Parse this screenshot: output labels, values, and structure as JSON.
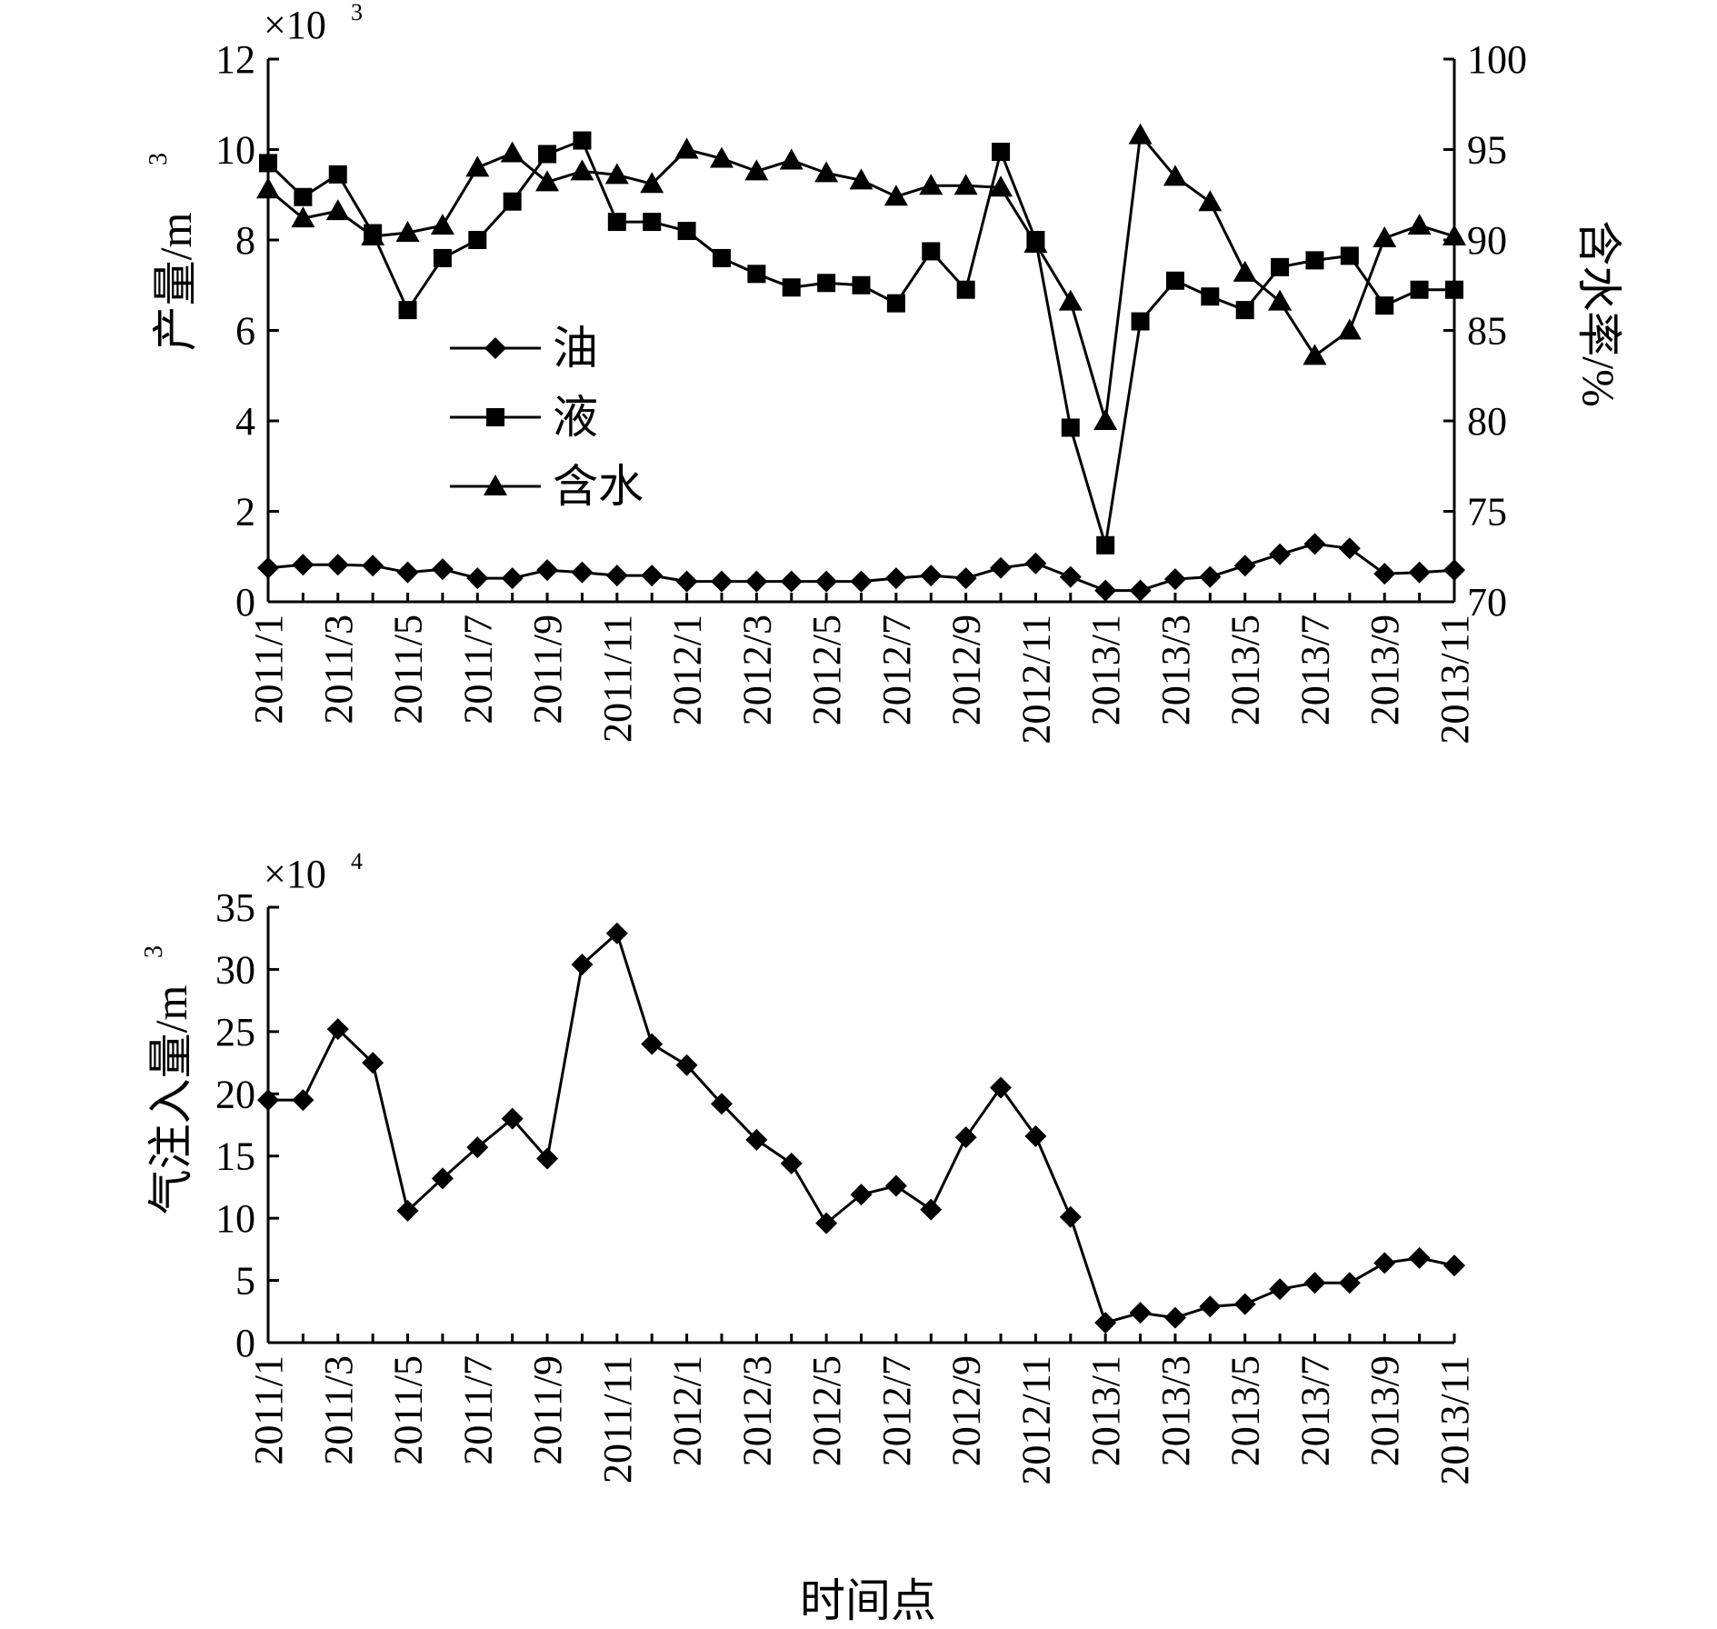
{
  "chart_data": [
    {
      "type": "line",
      "title": "",
      "multiplier": "×10",
      "multiplier_exp": "3",
      "ylabel": "产量/m",
      "ylabel_sup": "3",
      "y2label": "含水率/%",
      "ylim": [
        0,
        12
      ],
      "y2lim": [
        70,
        100
      ],
      "yticks": [
        "0",
        "2",
        "4",
        "6",
        "8",
        "10",
        "12"
      ],
      "y2ticks": [
        "70",
        "75",
        "80",
        "85",
        "90",
        "95",
        "100"
      ],
      "x": [
        "2011/1",
        "2011/2",
        "2011/3",
        "2011/4",
        "2011/5",
        "2011/6",
        "2011/7",
        "2011/8",
        "2011/9",
        "2011/10",
        "2011/11",
        "2011/12",
        "2012/1",
        "2012/2",
        "2012/3",
        "2012/4",
        "2012/5",
        "2012/6",
        "2012/7",
        "2012/8",
        "2012/9",
        "2012/10",
        "2012/11",
        "2012/12",
        "2013/1",
        "2013/2",
        "2013/3",
        "2013/4",
        "2013/5",
        "2013/6",
        "2013/7",
        "2013/8",
        "2013/9",
        "2013/10",
        "2013/11"
      ],
      "xtick_labels": [
        "2011/1",
        "2011/3",
        "2011/5",
        "2011/7",
        "2011/9",
        "2011/11",
        "2012/1",
        "2012/3",
        "2012/5",
        "2012/7",
        "2012/9",
        "2012/11",
        "2013/1",
        "2013/3",
        "2013/5",
        "2013/7",
        "2013/9",
        "2013/11"
      ],
      "legend": {
        "position": "center-left"
      },
      "series": [
        {
          "name": "油",
          "axis": "left",
          "marker": "diamond",
          "values": [
            0.75,
            0.82,
            0.82,
            0.8,
            0.65,
            0.72,
            0.52,
            0.52,
            0.7,
            0.65,
            0.58,
            0.58,
            0.45,
            0.45,
            0.45,
            0.45,
            0.45,
            0.45,
            0.52,
            0.58,
            0.52,
            0.75,
            0.85,
            0.55,
            0.25,
            0.25,
            0.5,
            0.55,
            0.8,
            1.05,
            1.28,
            1.18,
            0.62,
            0.65,
            0.7
          ]
        },
        {
          "name": "液",
          "axis": "left",
          "marker": "square",
          "values": [
            9.7,
            8.95,
            9.45,
            8.15,
            6.45,
            7.6,
            8.0,
            8.85,
            9.9,
            10.2,
            8.4,
            8.4,
            8.2,
            7.6,
            7.25,
            6.95,
            7.05,
            7.0,
            6.6,
            7.75,
            6.9,
            9.95,
            8.0,
            3.85,
            1.25,
            6.2,
            7.1,
            6.75,
            6.45,
            7.4,
            7.55,
            7.65,
            6.55,
            6.9,
            6.9
          ]
        },
        {
          "name": "含水",
          "axis": "right",
          "marker": "triangle",
          "values": [
            92.8,
            91.2,
            91.6,
            90.2,
            90.4,
            90.8,
            94.0,
            94.8,
            93.2,
            93.8,
            93.6,
            93.1,
            95.0,
            94.5,
            93.8,
            94.4,
            93.7,
            93.3,
            92.4,
            93.0,
            93.0,
            92.9,
            89.8,
            86.6,
            80.0,
            95.8,
            93.5,
            92.1,
            88.2,
            86.6,
            83.6,
            85.0,
            90.1,
            90.8,
            90.2
          ]
        }
      ]
    },
    {
      "type": "line",
      "title": "",
      "multiplier": "×10",
      "multiplier_exp": "4",
      "ylabel": "气注入量/m",
      "ylabel_sup": "3",
      "xlabel": "时间点",
      "ylim": [
        0,
        35
      ],
      "yticks": [
        "0",
        "5",
        "10",
        "15",
        "20",
        "25",
        "30",
        "35"
      ],
      "x": [
        "2011/1",
        "2011/2",
        "2011/3",
        "2011/4",
        "2011/5",
        "2011/6",
        "2011/7",
        "2011/8",
        "2011/9",
        "2011/10",
        "2011/11",
        "2011/12",
        "2012/1",
        "2012/2",
        "2012/3",
        "2012/4",
        "2012/5",
        "2012/6",
        "2012/7",
        "2012/8",
        "2012/9",
        "2012/10",
        "2012/11",
        "2012/12",
        "2013/1",
        "2013/2",
        "2013/3",
        "2013/4",
        "2013/5",
        "2013/6",
        "2013/7",
        "2013/8",
        "2013/9",
        "2013/10",
        "2013/11"
      ],
      "xtick_labels": [
        "2011/1",
        "2011/3",
        "2011/5",
        "2011/7",
        "2011/9",
        "2011/11",
        "2012/1",
        "2012/3",
        "2012/5",
        "2012/7",
        "2012/9",
        "2012/11",
        "2013/1",
        "2013/3",
        "2013/5",
        "2013/7",
        "2013/9",
        "2013/11"
      ],
      "series": [
        {
          "marker": "diamond",
          "values": [
            19.5,
            19.5,
            25.2,
            22.5,
            10.6,
            13.2,
            15.7,
            18.0,
            14.8,
            30.4,
            32.9,
            24.0,
            22.3,
            19.2,
            16.3,
            14.4,
            9.6,
            11.9,
            12.6,
            10.7,
            16.5,
            20.5,
            16.6,
            10.1,
            1.6,
            2.4,
            2.0,
            2.9,
            3.1,
            4.3,
            4.8,
            4.8,
            6.4,
            6.8,
            6.2
          ]
        }
      ]
    }
  ]
}
